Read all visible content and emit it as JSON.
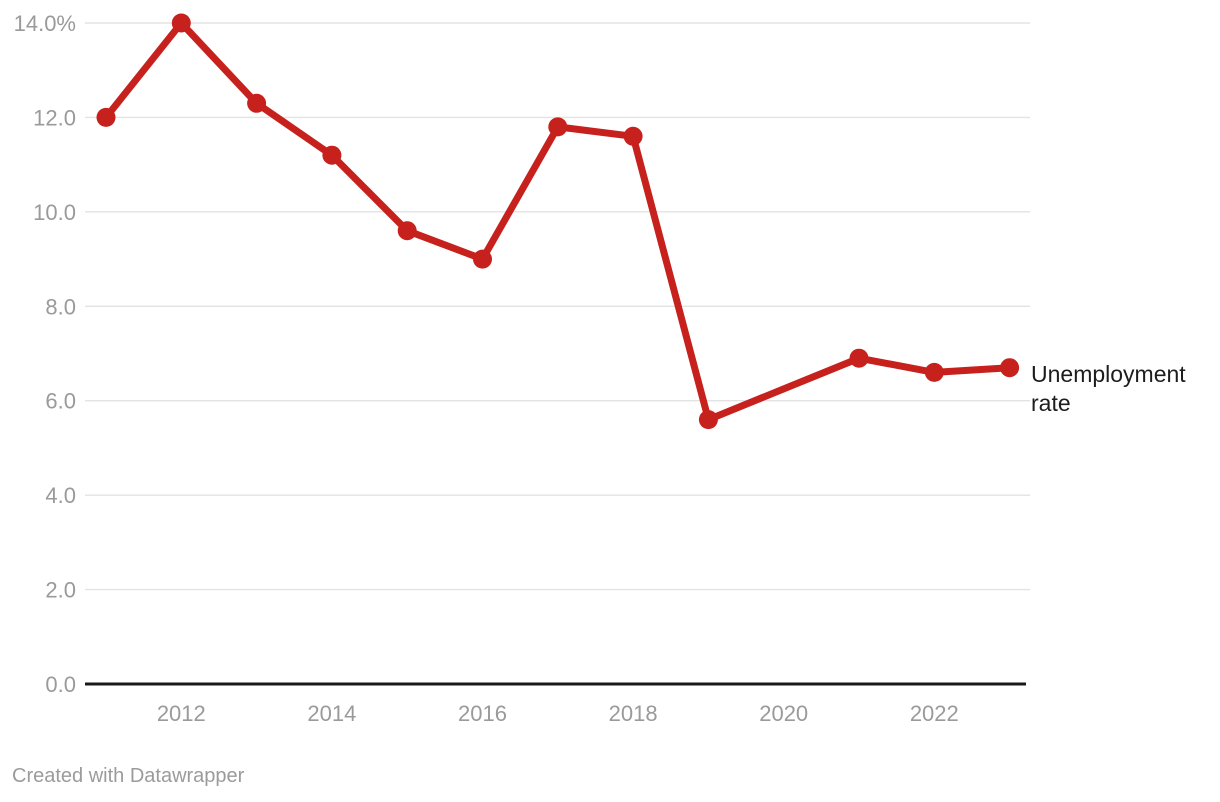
{
  "chart_data": {
    "type": "line",
    "title": "",
    "xlabel": "",
    "ylabel": "",
    "x": [
      2011,
      2012,
      2013,
      2014,
      2015,
      2016,
      2017,
      2018,
      2019,
      2020,
      2021,
      2022,
      2023
    ],
    "series": [
      {
        "name": "Unemployment rate",
        "color": "#c7211d",
        "values": [
          12.0,
          14.0,
          12.3,
          11.2,
          9.6,
          9.0,
          11.8,
          11.6,
          5.6,
          null,
          6.9,
          6.6,
          6.7
        ]
      }
    ],
    "xlim": [
      2011,
      2023
    ],
    "ylim": [
      0,
      14
    ],
    "y_ticks": [
      {
        "value": 14,
        "label": "14.0%"
      },
      {
        "value": 12,
        "label": "12.0"
      },
      {
        "value": 10,
        "label": "10.0"
      },
      {
        "value": 8,
        "label": "8.0"
      },
      {
        "value": 6,
        "label": "6.0"
      },
      {
        "value": 4,
        "label": "4.0"
      },
      {
        "value": 2,
        "label": "2.0"
      },
      {
        "value": 0,
        "label": "0.0"
      }
    ],
    "x_ticks": [
      {
        "value": 2012,
        "label": "2012"
      },
      {
        "value": 2014,
        "label": "2014"
      },
      {
        "value": 2016,
        "label": "2016"
      },
      {
        "value": 2018,
        "label": "2018"
      },
      {
        "value": 2020,
        "label": "2020"
      },
      {
        "value": 2022,
        "label": "2022"
      }
    ],
    "grid": "horizontal",
    "legend_position": "direct-label-right",
    "connect_missing": true,
    "missing_x": [
      2020
    ]
  },
  "colors": {
    "line": "#c7211d",
    "tick_text": "#9a9a9a",
    "gridline": "#e3e3e3",
    "axis_line": "#191919",
    "label_text": "#1d1d1d",
    "background": "#ffffff"
  },
  "footer": {
    "credit": "Created with Datawrapper"
  }
}
